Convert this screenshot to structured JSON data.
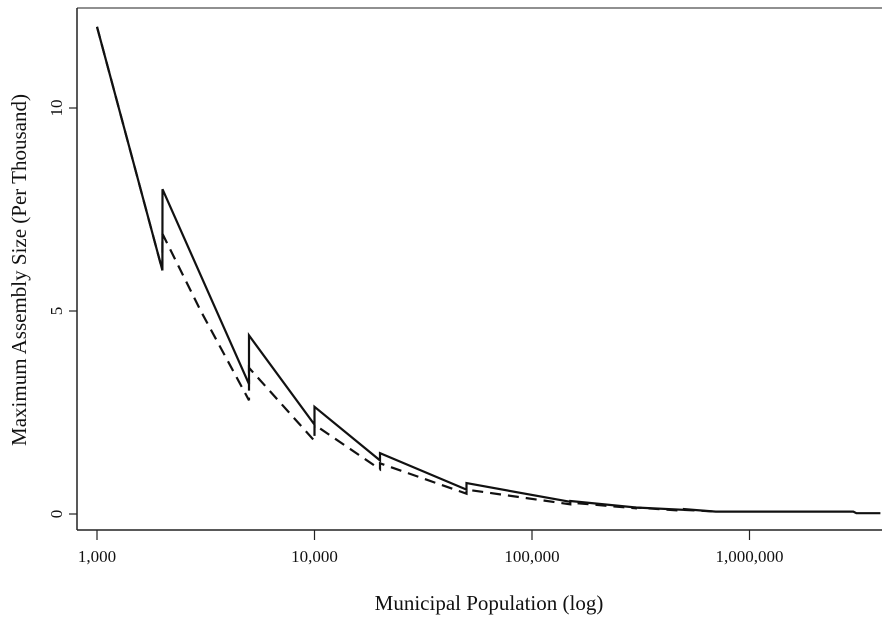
{
  "chart_data": {
    "type": "line",
    "title": "",
    "xlabel": "Municipal Population (log)",
    "ylabel": "Maximum Assembly Size (Per Thousand)",
    "x_scale": "log",
    "xlim": [
      1000,
      4000000
    ],
    "ylim": [
      0,
      12
    ],
    "x_ticks": [
      1000,
      10000,
      100000,
      1000000
    ],
    "x_tick_labels": [
      "1,000",
      "10,000",
      "100,000",
      "1,000,000"
    ],
    "y_ticks": [
      0,
      5,
      10
    ],
    "y_tick_labels": [
      "0",
      "5",
      "10"
    ],
    "grid": false,
    "legend": "none",
    "series": [
      {
        "style": "solid",
        "color": "#111111",
        "points": [
          [
            1000,
            12.0
          ],
          [
            1999,
            6.0
          ],
          [
            2000,
            8.0
          ],
          [
            4999,
            3.2
          ],
          [
            5000,
            4.4
          ],
          [
            9999,
            2.2
          ],
          [
            10000,
            2.64
          ],
          [
            19999,
            1.32
          ],
          [
            20000,
            1.5
          ],
          [
            49999,
            0.6
          ],
          [
            50000,
            0.76
          ],
          [
            149999,
            0.3
          ],
          [
            150000,
            0.32
          ],
          [
            299999,
            0.16
          ],
          [
            300000,
            0.16
          ],
          [
            499999,
            0.1
          ],
          [
            500000,
            0.12
          ],
          [
            700000,
            0.06
          ],
          [
            3000000,
            0.06
          ],
          [
            3100000,
            0.02
          ],
          [
            4000000,
            0.02
          ]
        ]
      },
      {
        "style": "dashed",
        "color": "#111111",
        "points": [
          [
            1000,
            12.0
          ],
          [
            1999,
            6.0
          ],
          [
            2000,
            6.9
          ],
          [
            3000,
            5.0
          ],
          [
            4999,
            2.8
          ],
          [
            5000,
            3.6
          ],
          [
            9999,
            1.8
          ],
          [
            10000,
            2.2
          ],
          [
            19999,
            1.1
          ],
          [
            20000,
            1.25
          ],
          [
            49999,
            0.5
          ],
          [
            50000,
            0.6
          ],
          [
            149999,
            0.24
          ],
          [
            150000,
            0.28
          ],
          [
            299999,
            0.14
          ],
          [
            300000,
            0.16
          ],
          [
            499999,
            0.08
          ],
          [
            500000,
            0.1
          ],
          [
            700000,
            0.06
          ]
        ]
      }
    ]
  }
}
